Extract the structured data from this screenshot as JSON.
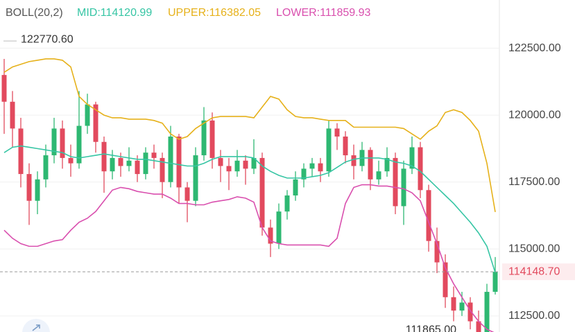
{
  "chart_data": {
    "type": "candlestick",
    "indicator": "BOLL(20,2)",
    "mid_label": "MID:114120.99",
    "upper_label": "UPPER:116382.05",
    "lower_label": "LOWER:111859.93",
    "up_color": "#2eb872",
    "down_color": "#e24a5e",
    "ylim": [
      111900,
      124300
    ],
    "yticks": [
      {
        "value": 112500,
        "label": "112500.00"
      },
      {
        "value": 115000,
        "label": "115000.00"
      },
      {
        "value": 117500,
        "label": "117500.00"
      },
      {
        "value": 120000,
        "label": "120000.00"
      },
      {
        "value": 122500,
        "label": "122500.00"
      }
    ],
    "max_label": {
      "value": 122770.6,
      "label": "122770.60"
    },
    "min_label": {
      "value": 111865,
      "label": "111865.00"
    },
    "last_price": {
      "value": 114148.7,
      "label": "114148.70"
    },
    "candles": [
      [
        121500,
        122100,
        119300,
        120500
      ],
      [
        120500,
        120900,
        118800,
        119500
      ],
      [
        119500,
        119900,
        117300,
        117800
      ],
      [
        117800,
        118200,
        115900,
        116800
      ],
      [
        116800,
        117900,
        116300,
        117600
      ],
      [
        117600,
        118900,
        117300,
        118500
      ],
      [
        118500,
        119900,
        118200,
        119500
      ],
      [
        119500,
        119800,
        118000,
        118400
      ],
      [
        118400,
        118900,
        117700,
        118200
      ],
      [
        118200,
        120900,
        118000,
        119600
      ],
      [
        119600,
        120800,
        119300,
        120400
      ],
      [
        120400,
        120500,
        118600,
        119000
      ],
      [
        119000,
        119200,
        117100,
        117900
      ],
      [
        117900,
        118700,
        117600,
        118400
      ],
      [
        118400,
        118600,
        117700,
        118100
      ],
      [
        118100,
        118800,
        117900,
        118300
      ],
      [
        118300,
        118500,
        117500,
        117800
      ],
      [
        117800,
        118800,
        117600,
        118600
      ],
      [
        118600,
        118900,
        118000,
        118400
      ],
      [
        118400,
        118600,
        116900,
        117500
      ],
      [
        117500,
        119600,
        117300,
        119200
      ],
      [
        119200,
        119300,
        116700,
        117300
      ],
      [
        117300,
        117500,
        116000,
        116800
      ],
      [
        116800,
        118800,
        116600,
        118500
      ],
      [
        118500,
        120300,
        118300,
        119800
      ],
      [
        119800,
        120100,
        118000,
        118400
      ],
      [
        118400,
        118700,
        117500,
        118100
      ],
      [
        118100,
        118400,
        117200,
        117900
      ],
      [
        117900,
        118700,
        117700,
        118300
      ],
      [
        118300,
        118500,
        117400,
        118000
      ],
      [
        118000,
        119100,
        117800,
        118400
      ],
      [
        118400,
        118600,
        115500,
        115800
      ],
      [
        115800,
        116100,
        114700,
        115200
      ],
      [
        115200,
        116700,
        115000,
        116400
      ],
      [
        116400,
        117200,
        116100,
        117000
      ],
      [
        117000,
        117900,
        116800,
        117600
      ],
      [
        117600,
        118200,
        117300,
        118000
      ],
      [
        118000,
        118400,
        117700,
        118200
      ],
      [
        118200,
        118400,
        117500,
        117900
      ],
      [
        117900,
        119800,
        117700,
        119500
      ],
      [
        119500,
        119700,
        118700,
        119200
      ],
      [
        119200,
        119400,
        118200,
        118500
      ],
      [
        118500,
        118900,
        117600,
        118100
      ],
      [
        118100,
        119000,
        117900,
        118700
      ],
      [
        118700,
        118800,
        117200,
        117600
      ],
      [
        117600,
        118300,
        117400,
        117900
      ],
      [
        117900,
        118800,
        117700,
        118400
      ],
      [
        118400,
        118600,
        116300,
        116600
      ],
      [
        116600,
        118300,
        115900,
        118000
      ],
      [
        118000,
        119200,
        117800,
        118800
      ],
      [
        118800,
        119000,
        116900,
        117200
      ],
      [
        117200,
        117400,
        114900,
        115300
      ],
      [
        115300,
        115800,
        114100,
        114500
      ],
      [
        114500,
        114800,
        112800,
        113200
      ],
      [
        113200,
        113600,
        112300,
        112700
      ],
      [
        112700,
        113400,
        112500,
        113000
      ],
      [
        113000,
        113200,
        112000,
        112300
      ],
      [
        112300,
        112700,
        111865,
        111900
      ],
      [
        111900,
        113700,
        111900,
        113400
      ],
      [
        113400,
        114700,
        113300,
        114148.7
      ]
    ],
    "bands": [
      {
        "name": "UPPER",
        "color": "#e6b11a",
        "values": [
          121600,
          121800,
          121900,
          122000,
          122050,
          122100,
          122100,
          122050,
          121800,
          120700,
          120400,
          120200,
          120000,
          119900,
          119900,
          119850,
          119850,
          119850,
          119800,
          119700,
          119300,
          119100,
          119200,
          119500,
          119700,
          119900,
          119950,
          119950,
          119950,
          119950,
          119900,
          120300,
          120700,
          120600,
          120200,
          119950,
          119900,
          119900,
          119850,
          119800,
          119800,
          119800,
          119550,
          119550,
          119550,
          119550,
          119550,
          119550,
          119500,
          119300,
          119100,
          119400,
          119600,
          120100,
          120200,
          120100,
          119800,
          119400,
          118200,
          116382.05
        ]
      },
      {
        "name": "MID",
        "color": "#36c5a4",
        "values": [
          118600,
          118800,
          118850,
          118800,
          118750,
          118700,
          118650,
          118600,
          118450,
          118400,
          118450,
          118500,
          118550,
          118500,
          118450,
          118400,
          118350,
          118350,
          118300,
          118250,
          118200,
          118150,
          118100,
          118100,
          118200,
          118350,
          118450,
          118450,
          118450,
          118450,
          118400,
          118100,
          117900,
          117750,
          117650,
          117650,
          117650,
          117700,
          117750,
          117850,
          118050,
          118250,
          118350,
          118400,
          118400,
          118400,
          118350,
          118250,
          118200,
          118100,
          117900,
          117600,
          117300,
          117000,
          116700,
          116350,
          116000,
          115600,
          115100,
          114120.99
        ]
      },
      {
        "name": "LOWER",
        "color": "#d94fae",
        "values": [
          115700,
          115400,
          115200,
          115100,
          115100,
          115200,
          115300,
          115350,
          115700,
          116000,
          116150,
          116400,
          116800,
          117200,
          117300,
          117250,
          117150,
          117100,
          117050,
          117050,
          116900,
          116700,
          116700,
          116650,
          116650,
          116750,
          116800,
          116850,
          116950,
          116900,
          116750,
          115800,
          115300,
          115200,
          115150,
          115150,
          115150,
          115150,
          115150,
          115100,
          115400,
          116700,
          117300,
          117400,
          117400,
          117350,
          117350,
          117300,
          117250,
          117100,
          116800,
          116000,
          115200,
          114300,
          113700,
          113200,
          112700,
          112300,
          112000,
          111859.93
        ]
      }
    ]
  }
}
